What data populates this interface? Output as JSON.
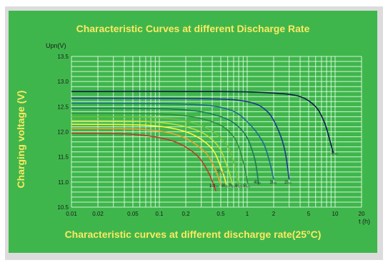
{
  "chart_data": {
    "type": "line",
    "title": "Characteristic Curves at different Discharge Rate",
    "footer": "Characteristic curves at different discharge rate(25°C)",
    "xlabel": "t (h)",
    "ylabel": "Charging voltage (V)",
    "yunit_label": "Upn(V)",
    "x_scale": "log",
    "xlim": [
      0.01,
      20
    ],
    "ylim": [
      10.5,
      13.5
    ],
    "x_ticks": [
      "0.01",
      "0.02",
      "0.05",
      "0.1",
      "0.2",
      "0.5",
      "1",
      "2",
      "5",
      "10",
      "20"
    ],
    "x_tick_values": [
      0.01,
      0.02,
      0.05,
      0.1,
      0.2,
      0.5,
      1,
      2,
      5,
      10,
      20
    ],
    "y_ticks": [
      "10.5",
      "11.0",
      "11.5",
      "12.0",
      "12.5",
      "13.0",
      "13.5"
    ],
    "y_tick_values": [
      10.5,
      11.0,
      11.5,
      12.0,
      12.5,
      13.0,
      13.5
    ],
    "grid": true,
    "series": [
      {
        "name": "1I₂₀",
        "color": "#0d1a4a",
        "x": [
          0.01,
          0.5,
          2,
          4,
          6,
          7.5,
          8.5,
          9.5
        ],
        "y": [
          12.8,
          12.8,
          12.77,
          12.7,
          12.5,
          12.2,
          11.9,
          11.58
        ]
      },
      {
        "name": "2I₂₀",
        "color": "#1f3a8c",
        "x": [
          0.01,
          0.3,
          1,
          1.7,
          2.3,
          2.7,
          3
        ],
        "y": [
          12.67,
          12.66,
          12.6,
          12.4,
          12.0,
          11.6,
          11.05
        ]
      },
      {
        "name": "3I₂₀",
        "color": "#1f6e8c",
        "x": [
          0.01,
          0.2,
          0.6,
          1.0,
          1.5,
          1.8,
          2.0
        ],
        "y": [
          12.57,
          12.55,
          12.45,
          12.2,
          11.8,
          11.4,
          11.05
        ]
      },
      {
        "name": "4I₂₀",
        "color": "#1a7a5a",
        "x": [
          0.01,
          0.15,
          0.5,
          0.9,
          1.2,
          1.35
        ],
        "y": [
          12.47,
          12.45,
          12.3,
          12.0,
          11.5,
          10.95
        ]
      },
      {
        "name": "5I₂₀",
        "color": "#2e8f3e",
        "x": [
          0.01,
          0.12,
          0.4,
          0.7,
          0.9,
          1.02
        ],
        "y": [
          12.37,
          12.35,
          12.2,
          11.9,
          11.4,
          10.95
        ]
      },
      {
        "name": "6I₂₀",
        "color": "#67c23a",
        "x": [
          0.01,
          0.1,
          0.3,
          0.55,
          0.7,
          0.8
        ],
        "y": [
          12.3,
          12.28,
          12.12,
          11.8,
          11.4,
          10.95
        ]
      },
      {
        "name": "7I₂₀",
        "color": "#b5e03c",
        "x": [
          0.01,
          0.08,
          0.25,
          0.45,
          0.58,
          0.68
        ],
        "y": [
          12.22,
          12.2,
          12.05,
          11.75,
          11.35,
          10.95
        ]
      },
      {
        "name": "8I₂₀",
        "color": "#fff23a",
        "x": [
          0.01,
          0.07,
          0.2,
          0.38,
          0.5,
          0.58
        ],
        "y": [
          12.15,
          12.13,
          12.0,
          11.7,
          11.3,
          10.95
        ]
      },
      {
        "name": "9I₂₀",
        "color": "#f0a030",
        "x": [
          0.01,
          0.06,
          0.17,
          0.32,
          0.42,
          0.5
        ],
        "y": [
          12.07,
          12.05,
          11.92,
          11.62,
          11.3,
          10.95
        ]
      },
      {
        "name": "10I₂₀",
        "color": "#c0392b",
        "x": [
          0.01,
          0.05,
          0.14,
          0.26,
          0.36,
          0.44
        ],
        "y": [
          11.97,
          11.95,
          11.82,
          11.55,
          11.2,
          10.82
        ]
      }
    ],
    "annotations": [
      {
        "text": "1I₂₀",
        "x": 9.8,
        "y": 11.55
      },
      {
        "text": "2I₂₀",
        "x": 2.9,
        "y": 10.97
      },
      {
        "text": "3I₂₀",
        "x": 1.98,
        "y": 10.97
      },
      {
        "text": "4I₂₀",
        "x": 1.3,
        "y": 10.97
      },
      {
        "text": "9I₂₀",
        "x": 0.5,
        "y": 11.18
      },
      {
        "text": "10I₂₀",
        "x": 0.42,
        "y": 10.9
      },
      {
        "text": "8I₂₀",
        "x": 0.56,
        "y": 10.9
      },
      {
        "text": "7I₂₀",
        "x": 0.67,
        "y": 10.9
      },
      {
        "text": "6I₂₀",
        "x": 0.8,
        "y": 10.9
      },
      {
        "text": "5I₂₀",
        "x": 0.98,
        "y": 10.9
      }
    ]
  }
}
